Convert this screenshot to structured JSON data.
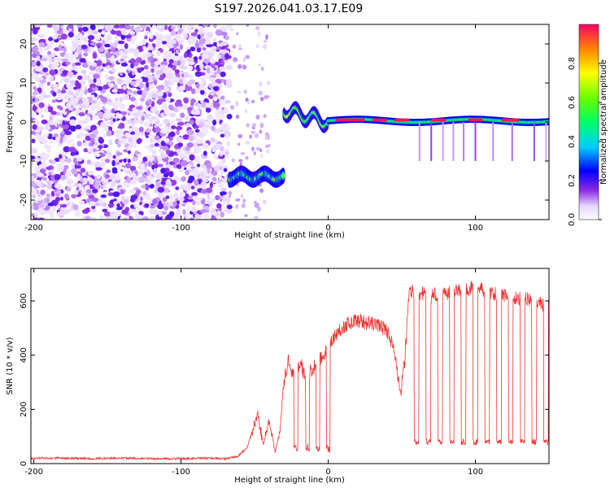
{
  "title": "S197.2026.041.03.17.E09",
  "chart_data": [
    {
      "type": "heatmap",
      "xlabel": "Height of straight line (km)",
      "ylabel": "Frequency (Hz)",
      "xlim": [
        -202,
        150
      ],
      "ylim": [
        -25,
        25
      ],
      "xticks": [
        -200,
        -100,
        0,
        100
      ],
      "yticks": [
        -20,
        -10,
        0,
        10,
        20
      ],
      "colorbar": {
        "label": "Normalized spectral amplitude",
        "range": [
          0,
          1
        ],
        "ticks": [
          "0.0",
          "0.2",
          "0.4",
          "0.6",
          "0.8"
        ]
      },
      "regions": [
        {
          "name": "noise",
          "x": [
            -202,
            -67
          ],
          "freq_range": [
            -25,
            25
          ],
          "amplitude": 0.05
        },
        {
          "name": "sparse-noise",
          "x": [
            -67,
            -40
          ],
          "freq_range": [
            -25,
            25
          ],
          "amplitude": 0.04
        },
        {
          "name": "low-band",
          "x": [
            -67,
            -30
          ],
          "freq_center": -14,
          "amplitude": 0.55
        },
        {
          "name": "transition",
          "x": [
            -30,
            0
          ],
          "freq_center": 2,
          "amplitude": 0.5
        },
        {
          "name": "carrier",
          "x": [
            0,
            150
          ],
          "freq_center": 0.3,
          "amplitude": 0.95
        }
      ]
    },
    {
      "type": "line",
      "xlabel": "Height of straight line (km)",
      "ylabel": "SNR (10 * v/v)",
      "xlim": [
        -202,
        150
      ],
      "ylim": [
        0,
        720
      ],
      "xticks": [
        -200,
        -100,
        0,
        100
      ],
      "yticks": [
        0,
        200,
        400,
        600
      ],
      "color": "#ee3333",
      "series": [
        {
          "name": "SNR",
          "x": [
            -202,
            -180,
            -160,
            -140,
            -120,
            -100,
            -80,
            -70,
            -62,
            -55,
            -48,
            -44,
            -40,
            -36,
            -33,
            -30,
            -27,
            -24,
            -21,
            -18,
            -15,
            -12,
            -9,
            -6,
            -3,
            0,
            3,
            6,
            9,
            12,
            15,
            20,
            25,
            30,
            35,
            40,
            43,
            46,
            49,
            52,
            55,
            60,
            70,
            80,
            90,
            100,
            110,
            120,
            130,
            140,
            150
          ],
          "y": [
            20,
            20,
            18,
            20,
            18,
            18,
            20,
            18,
            25,
            60,
            180,
            70,
            160,
            40,
            120,
            300,
            380,
            330,
            350,
            360,
            300,
            340,
            360,
            380,
            400,
            420,
            460,
            480,
            500,
            510,
            520,
            530,
            520,
            515,
            510,
            490,
            450,
            380,
            250,
            380,
            640,
            630,
            620,
            630,
            640,
            650,
            630,
            620,
            610,
            600,
            580
          ]
        }
      ],
      "dropouts": {
        "low_value": 70,
        "x_upper": [
          60,
          68,
          76,
          84,
          92,
          100,
          108,
          116,
          124,
          132,
          140,
          148
        ],
        "low_value_lower": 40,
        "x_lower": [
          -22,
          -14,
          -7,
          0
        ]
      }
    }
  ]
}
